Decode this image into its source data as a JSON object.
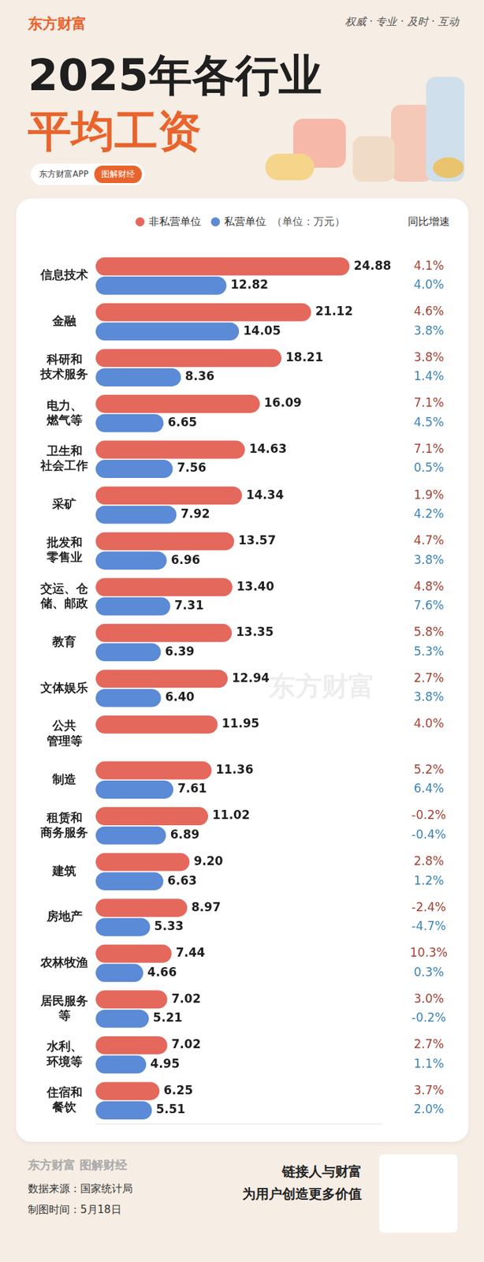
{
  "page": {
    "brand": "东方财富",
    "slogan": "权威 · 专业 · 及时 · 互动",
    "badges": [
      "东方财富APP",
      "图解财经"
    ],
    "unit": "（单位：万元）",
    "growth_header": "同比增速",
    "watermark": "东方财富",
    "footer": {
      "brand": "东方财富 图解财经",
      "source": "数据来源：国家统计局",
      "date": "制图时间：5月18日",
      "tagline": [
        "链接人与财富",
        "为用户创造更多价值"
      ]
    }
  },
  "chart_data": {
    "type": "bar",
    "title": [
      "2025年各行业",
      "平均工资"
    ],
    "orientation": "horizontal",
    "legend": "top",
    "grid": false,
    "data_labels": true,
    "tick_labels": "y",
    "categories": [
      [
        "信息技术"
      ],
      [
        "金融"
      ],
      [
        "科研和",
        "技术服务"
      ],
      [
        "电力、",
        "燃气等"
      ],
      [
        "卫生和",
        "社会工作"
      ],
      [
        "采矿"
      ],
      [
        "批发和",
        "零售业"
      ],
      [
        "交运、仓",
        "储、邮政"
      ],
      [
        "教育"
      ],
      [
        "文体娱乐"
      ],
      [
        "公共",
        "管理等"
      ],
      [
        "制造"
      ],
      [
        "租赁和",
        "商务服务"
      ],
      [
        "建筑"
      ],
      [
        "房地产"
      ],
      [
        "农林牧渔"
      ],
      [
        "居民服务",
        "等"
      ],
      [
        "水利、",
        "环境等"
      ],
      [
        "住宿和",
        "餐饮"
      ]
    ],
    "xlim": [
      0,
      28
    ],
    "series": [
      {
        "name": "非私营单位",
        "color": "#e4685c",
        "values": [
          24.88,
          21.12,
          18.21,
          16.09,
          14.63,
          14.34,
          13.57,
          13.4,
          13.35,
          12.94,
          11.95,
          11.36,
          11.02,
          9.2,
          8.97,
          7.44,
          7.02,
          7.02,
          6.25
        ],
        "value_labels": [
          "24.88",
          "21.12",
          "18.21",
          "16.09",
          "14.63",
          "14.34",
          "13.57",
          "13.40",
          "13.35",
          "12.94",
          "11.95",
          "11.36",
          "11.02",
          "9.20",
          "8.97",
          "7.44",
          "7.02",
          "7.02",
          "6.25"
        ],
        "growth": [
          4.1,
          4.6,
          3.8,
          7.1,
          7.1,
          1.9,
          4.7,
          4.8,
          5.8,
          2.7,
          4.0,
          5.2,
          -0.2,
          2.8,
          -2.4,
          10.3,
          3.0,
          2.7,
          3.7
        ],
        "growth_labels": [
          "4.1%",
          "4.6%",
          "3.8%",
          "7.1%",
          "7.1%",
          "1.9%",
          "4.7%",
          "4.8%",
          "5.8%",
          "2.7%",
          "4.0%",
          "5.2%",
          "-0.2%",
          "2.8%",
          "-2.4%",
          "10.3%",
          "3.0%",
          "2.7%",
          "3.7%"
        ]
      },
      {
        "name": "私营单位",
        "color": "#5b8ad6",
        "values": [
          12.82,
          14.05,
          8.36,
          6.65,
          7.56,
          7.92,
          6.96,
          7.31,
          6.39,
          6.4,
          null,
          7.61,
          6.89,
          6.63,
          5.33,
          4.66,
          5.21,
          4.95,
          5.51
        ],
        "value_labels": [
          "12.82",
          "14.05",
          "8.36",
          "6.65",
          "7.56",
          "7.92",
          "6.96",
          "7.31",
          "6.39",
          "6.40",
          null,
          "7.61",
          "6.89",
          "6.63",
          "5.33",
          "4.66",
          "5.21",
          "4.95",
          "5.51"
        ],
        "growth": [
          4.0,
          3.8,
          1.4,
          4.5,
          0.5,
          4.2,
          3.8,
          7.6,
          5.3,
          3.8,
          null,
          6.4,
          -0.4,
          1.2,
          -4.7,
          0.3,
          -0.2,
          1.1,
          2.0
        ],
        "growth_labels": [
          "4.0%",
          "3.8%",
          "1.4%",
          "4.5%",
          "0.5%",
          "4.2%",
          "3.8%",
          "7.6%",
          "5.3%",
          "3.8%",
          null,
          "6.4%",
          "-0.4%",
          "1.2%",
          "-4.7%",
          "0.3%",
          "-0.2%",
          "1.1%",
          "2.0%"
        ]
      }
    ]
  }
}
